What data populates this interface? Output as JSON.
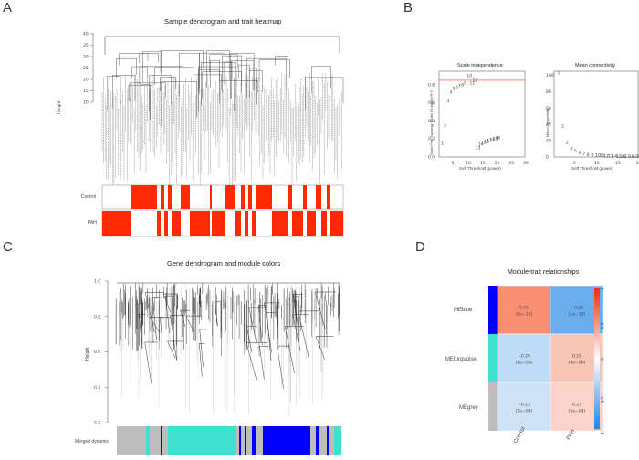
{
  "panels": {
    "A": {
      "letter": "A",
      "title": "Sample dendrogram and trait heatmap",
      "ylabel": "Height",
      "yticks": [
        "10",
        "15",
        "20",
        "25",
        "30",
        "35",
        "40"
      ],
      "traits": [
        "Control",
        "PAH"
      ],
      "colors": {
        "trait": "#ff2a00",
        "tree": "#333333"
      }
    },
    "B": {
      "letter": "B",
      "left_title": "Scale independence",
      "left_xlabel": "Soft Threshold (power)",
      "left_ylabel": "Scale Free Topology Model Fit,signed R^2",
      "right_title": "Mean connectivity",
      "right_xlabel": "Soft Threshold (power)",
      "right_ylabel": "Mean Connectivity",
      "xticks": [
        "5",
        "10",
        "15",
        "20"
      ],
      "left_yticks": [
        "0.0",
        "0.2",
        "0.4",
        "0.6",
        "0.8"
      ],
      "right_yticks": [
        "0",
        "20",
        "40",
        "60",
        "80",
        "100"
      ],
      "point_color": "#ff3333",
      "r2_threshold": 0.85
    },
    "C": {
      "letter": "C",
      "title": "Gene dendrogram and module colors",
      "ylabel": "Height",
      "yticks": [
        "0.2",
        "0.4",
        "0.6",
        "0.8",
        "1.0"
      ],
      "color_bar_label": "Merged dynamic",
      "module_colors": {
        "grey": "#bebebe",
        "turquoise": "#40e0d0",
        "blue": "#0000ff"
      }
    },
    "D": {
      "letter": "D",
      "title": "Module-trait relationships",
      "rows": [
        "MEblue",
        "MEturquoise",
        "MEgrey"
      ],
      "row_colors": [
        "#0000ff",
        "#40e0d0",
        "#bebebe"
      ],
      "columns": [
        "Control",
        "PAH"
      ],
      "cells": [
        [
          {
            "value": "0.55",
            "p": "(1e−19)"
          },
          {
            "value": "−0.55",
            "p": "(1e−19)"
          }
        ],
        [
          {
            "value": "−0.29",
            "p": "(8e−06)"
          },
          {
            "value": "0.29",
            "p": "(8e−06)"
          }
        ],
        [
          {
            "value": "−0.23",
            "p": "(5e−04)"
          },
          {
            "value": "0.23",
            "p": "(5e−04)"
          }
        ]
      ],
      "cell_colors": [
        [
          "#f98e73",
          "#6aaef0"
        ],
        [
          "#bfdcf7",
          "#f9c5b6"
        ],
        [
          "#cfe3f8",
          "#fbd3c8"
        ]
      ],
      "legend_ticks": [
        "1",
        "0.5",
        "0",
        "−0.5",
        "−1"
      ]
    }
  },
  "chart_data": [
    {
      "type": "scatter",
      "title": "Scale independence",
      "xlabel": "Soft Threshold (power)",
      "ylabel": "Scale Free Topology Model Fit,signed R^2",
      "x": [
        1,
        2,
        3,
        4,
        5,
        6,
        7,
        8,
        9,
        10,
        11,
        12,
        13,
        14,
        15,
        16,
        17,
        18,
        19,
        20
      ],
      "y": [
        0.15,
        0.35,
        0.62,
        0.72,
        0.76,
        0.78,
        0.79,
        0.8,
        0.82,
        0.9,
        0.82,
        0.85,
        0.1,
        0.14,
        0.16,
        0.17,
        0.18,
        0.19,
        0.2,
        0.21
      ],
      "xlim": [
        0,
        30
      ],
      "ylim": [
        0,
        0.95
      ]
    },
    {
      "type": "scatter",
      "title": "Mean connectivity",
      "xlabel": "Soft Threshold (power)",
      "ylabel": "Mean Connectivity",
      "x": [
        1,
        2,
        3,
        4,
        5,
        6,
        7,
        8,
        9,
        10,
        11,
        12,
        13,
        14,
        15,
        16,
        17,
        18,
        19,
        20
      ],
      "y": [
        103,
        38,
        18,
        10,
        7,
        5,
        4,
        3,
        2.5,
        2,
        1.5,
        1.2,
        1,
        0.9,
        0.8,
        0.7,
        0.6,
        0.5,
        0.5,
        0.4
      ],
      "xlim": [
        0,
        20
      ],
      "ylim": [
        0,
        105
      ]
    },
    {
      "type": "heatmap",
      "title": "Module-trait relationships",
      "rows": [
        "MEblue",
        "MEturquoise",
        "MEgrey"
      ],
      "columns": [
        "Control",
        "PAH"
      ],
      "values": [
        [
          0.55,
          -0.55
        ],
        [
          -0.29,
          0.29
        ],
        [
          -0.23,
          0.23
        ]
      ],
      "pvalues": [
        "1e−19",
        "8e−06",
        "5e−04"
      ],
      "range": [
        -1,
        1
      ]
    }
  ]
}
